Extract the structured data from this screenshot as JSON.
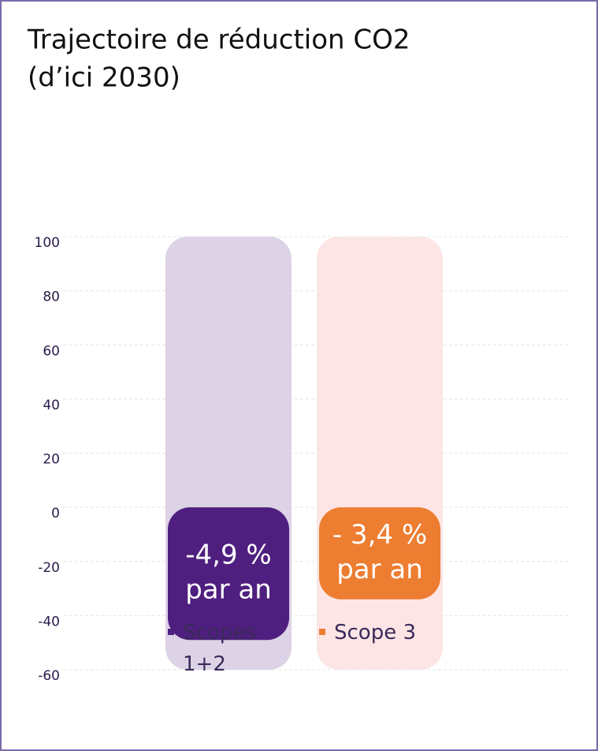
{
  "chart_data": {
    "type": "bar",
    "title": [
      "Trajectoire de réduction CO2",
      "(d’ici 2030)"
    ],
    "series": [
      {
        "name": "Scopes 1+2",
        "color": "#4f1f7f",
        "background_color": "#dcd3e6",
        "values": [
          -49
        ],
        "annotation": [
          "-4,9 %",
          "par an"
        ]
      },
      {
        "name": "Scope 3",
        "color": "#ed7d31",
        "background_color": "#fde5e5",
        "values": [
          -34
        ],
        "annotation": [
          "- 3,4 %",
          "par an"
        ]
      }
    ],
    "ylim": [
      -60,
      100
    ],
    "yticks": [
      -60,
      -40,
      -20,
      0,
      20,
      40,
      60,
      80,
      100
    ],
    "grid": true
  }
}
